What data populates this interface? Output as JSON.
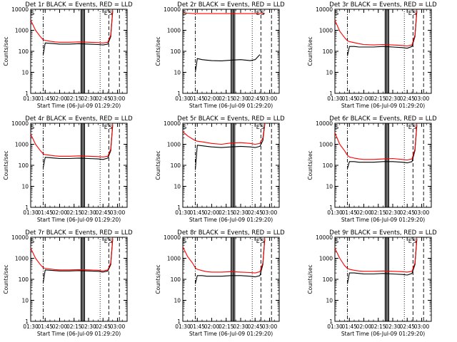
{
  "figure": {
    "xlabel": "Start Time (06-Jul-09 01:29:20)",
    "ylabel": "Counts/sec",
    "x_ticks": [
      "01:30",
      "01:45",
      "02:00",
      "02:15",
      "02:30",
      "02:45",
      "03:00"
    ],
    "y_ticks": [
      "1",
      "10",
      "100",
      "1000",
      "10000"
    ],
    "colors": {
      "events": "#000000",
      "lld": "#ff0000",
      "axes": "#000000"
    }
  },
  "chart_data": [
    {
      "type": "line",
      "title": "Det 1r BLACK = Events, RED = LLD",
      "xlabel": "Start Time (06-Jul-09 01:29:20)",
      "ylabel": "Counts/sec",
      "xlim": [
        "01:30",
        "03:10"
      ],
      "ylim": [
        1,
        10000
      ],
      "yscale": "log",
      "x": [
        "01:30",
        "01:35",
        "01:40",
        "01:43",
        "01:45",
        "01:50",
        "01:55",
        "02:00",
        "02:10",
        "02:20",
        "02:30",
        "02:40",
        "02:45",
        "02:50",
        "02:53",
        "02:55"
      ],
      "series": [
        {
          "name": "Events",
          "color": "#000000",
          "values": [
            null,
            null,
            null,
            70,
            250,
            240,
            230,
            220,
            220,
            230,
            220,
            210,
            200,
            220,
            500,
            8000
          ]
        },
        {
          "name": "LLD",
          "color": "#ff0000",
          "values": [
            3000,
            1000,
            500,
            350,
            330,
            300,
            280,
            270,
            270,
            280,
            270,
            260,
            250,
            270,
            600,
            9000
          ]
        }
      ],
      "markers": {
        "dash_dot": [
          "01:43"
        ],
        "solid": [
          "02:22",
          "02:23",
          "02:24",
          "02:25",
          "02:26"
        ],
        "dotted": [
          "02:42"
        ],
        "dashed": [
          "02:51",
          "03:02"
        ]
      },
      "annotations": [
        {
          "x": "01:32",
          "y": 10000,
          "text": "S"
        },
        {
          "x": "02:48",
          "y": 10000,
          "text": "E"
        },
        {
          "x": "02:53",
          "y": 10000,
          "text": "S"
        }
      ]
    },
    {
      "type": "line",
      "title": "Det 2r BLACK = Events, RED = LLD",
      "xlabel": "Start Time (06-Jul-09 01:29:20)",
      "ylabel": "Counts/sec",
      "xlim": [
        "01:30",
        "03:10"
      ],
      "ylim": [
        1,
        10000
      ],
      "yscale": "log",
      "x": [
        "01:30",
        "01:35",
        "01:40",
        "01:43",
        "01:45",
        "01:50",
        "01:55",
        "02:00",
        "02:10",
        "02:20",
        "02:30",
        "02:40",
        "02:45",
        "02:50",
        "02:53",
        "02:55"
      ],
      "series": [
        {
          "name": "Events",
          "color": "#000000",
          "values": [
            null,
            null,
            null,
            10,
            45,
            40,
            38,
            36,
            35,
            38,
            40,
            36,
            40,
            70,
            null,
            null
          ]
        },
        {
          "name": "LLD",
          "color": "#ff0000",
          "values": [
            7000,
            6500,
            6300,
            6200,
            6200,
            6200,
            6200,
            6200,
            6200,
            6200,
            6200,
            6200,
            6200,
            6200,
            6300,
            6500
          ]
        }
      ],
      "markers": {
        "dash_dot": [
          "01:43"
        ],
        "solid": [
          "02:20",
          "02:21",
          "02:22",
          "02:23",
          "02:24"
        ],
        "dotted": [
          "02:42"
        ],
        "dashed": [
          "02:51",
          "03:02"
        ]
      },
      "annotations": [
        {
          "x": "01:32",
          "y": 10000,
          "text": "S"
        },
        {
          "x": "02:48",
          "y": 10000,
          "text": "E"
        },
        {
          "x": "02:53",
          "y": 10000,
          "text": "S"
        }
      ]
    },
    {
      "type": "line",
      "title": "Det 3r BLACK = Events, RED = LLD",
      "xlabel": "Start Time (06-Jul-09 01:29:20)",
      "ylabel": "Counts/sec",
      "xlim": [
        "01:30",
        "03:10"
      ],
      "ylim": [
        1,
        10000
      ],
      "yscale": "log",
      "x": [
        "01:30",
        "01:35",
        "01:40",
        "01:43",
        "01:45",
        "01:50",
        "01:55",
        "02:00",
        "02:10",
        "02:20",
        "02:30",
        "02:40",
        "02:45",
        "02:50",
        "02:53",
        "02:55"
      ],
      "series": [
        {
          "name": "Events",
          "color": "#000000",
          "values": [
            null,
            null,
            null,
            60,
            170,
            170,
            160,
            160,
            160,
            170,
            160,
            150,
            140,
            170,
            500,
            8000
          ]
        },
        {
          "name": "LLD",
          "color": "#ff0000",
          "values": [
            3000,
            900,
            450,
            320,
            290,
            260,
            230,
            210,
            200,
            210,
            200,
            190,
            180,
            200,
            600,
            9000
          ]
        }
      ],
      "markers": {
        "dash_dot": [
          "01:43"
        ],
        "solid": [
          "02:22",
          "02:23",
          "02:24",
          "02:25",
          "02:26"
        ],
        "dotted": [
          "02:42"
        ],
        "dashed": [
          "02:51",
          "03:02"
        ]
      },
      "annotations": [
        {
          "x": "01:32",
          "y": 10000,
          "text": "S"
        },
        {
          "x": "02:48",
          "y": 10000,
          "text": "E"
        },
        {
          "x": "02:53",
          "y": 10000,
          "text": "S"
        }
      ]
    },
    {
      "type": "line",
      "title": "Det 4r BLACK = Events, RED = LLD",
      "xlabel": "Start Time (06-Jul-09 01:29:20)",
      "ylabel": "Counts/sec",
      "xlim": [
        "01:30",
        "03:10"
      ],
      "ylim": [
        1,
        10000
      ],
      "yscale": "log",
      "x": [
        "01:30",
        "01:35",
        "01:40",
        "01:43",
        "01:45",
        "01:50",
        "01:55",
        "02:00",
        "02:10",
        "02:20",
        "02:30",
        "02:40",
        "02:45",
        "02:50",
        "02:53",
        "02:55"
      ],
      "series": [
        {
          "name": "Events",
          "color": "#000000",
          "values": [
            null,
            null,
            null,
            80,
            240,
            230,
            220,
            210,
            210,
            220,
            210,
            200,
            190,
            220,
            500,
            8000
          ]
        },
        {
          "name": "LLD",
          "color": "#ff0000",
          "values": [
            3000,
            1000,
            500,
            350,
            320,
            300,
            280,
            270,
            270,
            280,
            270,
            260,
            250,
            270,
            600,
            9000
          ]
        }
      ],
      "markers": {
        "dash_dot": [
          "01:43"
        ],
        "solid": [
          "02:22",
          "02:23",
          "02:24",
          "02:25",
          "02:26"
        ],
        "dotted": [
          "02:42"
        ],
        "dashed": [
          "02:51",
          "03:02"
        ]
      },
      "annotations": [
        {
          "x": "01:32",
          "y": 10000,
          "text": "S"
        },
        {
          "x": "02:48",
          "y": 10000,
          "text": "E"
        },
        {
          "x": "02:53",
          "y": 10000,
          "text": "S"
        }
      ]
    },
    {
      "type": "line",
      "title": "Det 5r BLACK = Events, RED = LLD",
      "xlabel": "Start Time (06-Jul-09 01:29:20)",
      "ylabel": "Counts/sec",
      "xlim": [
        "01:30",
        "03:10"
      ],
      "ylim": [
        1,
        10000
      ],
      "yscale": "log",
      "x": [
        "01:30",
        "01:35",
        "01:40",
        "01:43",
        "01:45",
        "01:50",
        "01:55",
        "02:00",
        "02:10",
        "02:20",
        "02:30",
        "02:40",
        "02:45",
        "02:50",
        "02:53",
        "02:55"
      ],
      "series": [
        {
          "name": "Events",
          "color": "#000000",
          "values": [
            null,
            null,
            null,
            60,
            900,
            850,
            800,
            750,
            700,
            750,
            800,
            750,
            700,
            800,
            1500,
            9000
          ]
        },
        {
          "name": "LLD",
          "color": "#ff0000",
          "values": [
            4000,
            2500,
            1800,
            1500,
            1400,
            1300,
            1200,
            1100,
            1000,
            1150,
            1200,
            1100,
            1000,
            1100,
            2000,
            9500
          ]
        }
      ],
      "markers": {
        "dash_dot": [
          "01:43"
        ],
        "solid": [
          "02:20",
          "02:21",
          "02:22",
          "02:23",
          "02:24"
        ],
        "dotted": [
          "02:42"
        ],
        "dashed": [
          "02:51",
          "03:02"
        ]
      },
      "annotations": [
        {
          "x": "01:32",
          "y": 10000,
          "text": "S"
        },
        {
          "x": "02:48",
          "y": 10000,
          "text": "E"
        },
        {
          "x": "02:53",
          "y": 10000,
          "text": "S"
        }
      ]
    },
    {
      "type": "line",
      "title": "Det 6r BLACK = Events, RED = LLD",
      "xlabel": "Start Time (06-Jul-09 01:29:20)",
      "ylabel": "Counts/sec",
      "xlim": [
        "01:30",
        "03:10"
      ],
      "ylim": [
        1,
        10000
      ],
      "yscale": "log",
      "x": [
        "01:30",
        "01:35",
        "01:40",
        "01:43",
        "01:45",
        "01:50",
        "01:55",
        "02:00",
        "02:10",
        "02:20",
        "02:30",
        "02:40",
        "02:45",
        "02:50",
        "02:53",
        "02:55"
      ],
      "series": [
        {
          "name": "Events",
          "color": "#000000",
          "values": [
            null,
            null,
            null,
            70,
            150,
            150,
            140,
            140,
            140,
            150,
            150,
            140,
            130,
            150,
            500,
            8000
          ]
        },
        {
          "name": "LLD",
          "color": "#ff0000",
          "values": [
            3500,
            1000,
            500,
            300,
            250,
            220,
            200,
            190,
            190,
            200,
            210,
            190,
            180,
            200,
            600,
            9000
          ]
        }
      ],
      "markers": {
        "dash_dot": [
          "01:43"
        ],
        "solid": [
          "02:22",
          "02:23",
          "02:24",
          "02:25",
          "02:26"
        ],
        "dotted": [
          "02:42"
        ],
        "dashed": [
          "02:51",
          "03:02"
        ]
      },
      "annotations": [
        {
          "x": "01:32",
          "y": 10000,
          "text": "S"
        },
        {
          "x": "02:48",
          "y": 10000,
          "text": "E"
        },
        {
          "x": "02:53",
          "y": 10000,
          "text": "S"
        }
      ]
    },
    {
      "type": "line",
      "title": "Det 7r BLACK = Events, RED = LLD",
      "xlabel": "Start Time (06-Jul-09 01:29:20)",
      "ylabel": "Counts/sec",
      "xlim": [
        "01:30",
        "03:10"
      ],
      "ylim": [
        1,
        10000
      ],
      "yscale": "log",
      "x": [
        "01:30",
        "01:35",
        "01:40",
        "01:43",
        "01:45",
        "01:50",
        "01:55",
        "02:00",
        "02:10",
        "02:20",
        "02:30",
        "02:40",
        "02:45",
        "02:50",
        "02:53",
        "02:55"
      ],
      "series": [
        {
          "name": "Events",
          "color": "#000000",
          "values": [
            null,
            null,
            null,
            70,
            280,
            270,
            260,
            250,
            250,
            260,
            250,
            240,
            220,
            250,
            500,
            8000
          ]
        },
        {
          "name": "LLD",
          "color": "#ff0000",
          "values": [
            3000,
            1000,
            500,
            360,
            330,
            310,
            290,
            280,
            280,
            290,
            280,
            270,
            250,
            280,
            600,
            9000
          ]
        }
      ],
      "markers": {
        "dash_dot": [
          "01:43"
        ],
        "solid": [
          "02:22",
          "02:23",
          "02:24",
          "02:25",
          "02:26"
        ],
        "dotted": [
          "02:42"
        ],
        "dashed": [
          "02:51",
          "03:02"
        ]
      },
      "annotations": [
        {
          "x": "01:32",
          "y": 10000,
          "text": "S"
        },
        {
          "x": "02:48",
          "y": 10000,
          "text": "E"
        },
        {
          "x": "02:53",
          "y": 10000,
          "text": "S"
        }
      ]
    },
    {
      "type": "line",
      "title": "Det 8r BLACK = Events, RED = LLD",
      "xlabel": "Start Time (06-Jul-09 01:29:20)",
      "ylabel": "Counts/sec",
      "xlim": [
        "01:30",
        "03:10"
      ],
      "ylim": [
        1,
        10000
      ],
      "yscale": "log",
      "x": [
        "01:30",
        "01:35",
        "01:40",
        "01:43",
        "01:45",
        "01:50",
        "01:55",
        "02:00",
        "02:10",
        "02:20",
        "02:30",
        "02:40",
        "02:45",
        "02:50",
        "02:53",
        "02:55"
      ],
      "series": [
        {
          "name": "Events",
          "color": "#000000",
          "values": [
            null,
            null,
            null,
            60,
            150,
            150,
            140,
            140,
            140,
            150,
            150,
            140,
            130,
            150,
            500,
            8000
          ]
        },
        {
          "name": "LLD",
          "color": "#ff0000",
          "values": [
            3500,
            1200,
            600,
            350,
            300,
            260,
            230,
            220,
            220,
            230,
            220,
            210,
            200,
            230,
            600,
            9000
          ]
        }
      ],
      "markers": {
        "dash_dot": [
          "01:43"
        ],
        "solid": [
          "02:20",
          "02:21",
          "02:22",
          "02:23",
          "02:24"
        ],
        "dotted": [
          "02:42"
        ],
        "dashed": [
          "02:51",
          "03:02"
        ]
      },
      "annotations": [
        {
          "x": "01:32",
          "y": 10000,
          "text": "S"
        },
        {
          "x": "02:48",
          "y": 10000,
          "text": "E"
        },
        {
          "x": "02:53",
          "y": 10000,
          "text": "S"
        }
      ]
    },
    {
      "type": "line",
      "title": "Det 9r BLACK = Events, RED = LLD",
      "xlabel": "Start Time (06-Jul-09 01:29:20)",
      "ylabel": "Counts/sec",
      "xlim": [
        "01:30",
        "03:10"
      ],
      "ylim": [
        1,
        10000
      ],
      "yscale": "log",
      "x": [
        "01:30",
        "01:35",
        "01:40",
        "01:43",
        "01:45",
        "01:50",
        "01:55",
        "02:00",
        "02:10",
        "02:20",
        "02:30",
        "02:40",
        "02:45",
        "02:50",
        "02:53",
        "02:55"
      ],
      "series": [
        {
          "name": "Events",
          "color": "#000000",
          "values": [
            null,
            null,
            null,
            60,
            200,
            200,
            190,
            180,
            180,
            190,
            180,
            170,
            160,
            190,
            500,
            8000
          ]
        },
        {
          "name": "LLD",
          "color": "#ff0000",
          "values": [
            3000,
            1000,
            450,
            330,
            300,
            270,
            250,
            240,
            240,
            250,
            240,
            230,
            220,
            240,
            600,
            9000
          ]
        }
      ],
      "markers": {
        "dash_dot": [
          "01:43"
        ],
        "solid": [
          "02:22",
          "02:23",
          "02:24",
          "02:25",
          "02:26"
        ],
        "dotted": [
          "02:42"
        ],
        "dashed": [
          "02:51",
          "03:02"
        ]
      },
      "annotations": [
        {
          "x": "01:32",
          "y": 10000,
          "text": "S"
        },
        {
          "x": "02:48",
          "y": 10000,
          "text": "E"
        },
        {
          "x": "02:53",
          "y": 10000,
          "text": "S"
        }
      ]
    }
  ]
}
